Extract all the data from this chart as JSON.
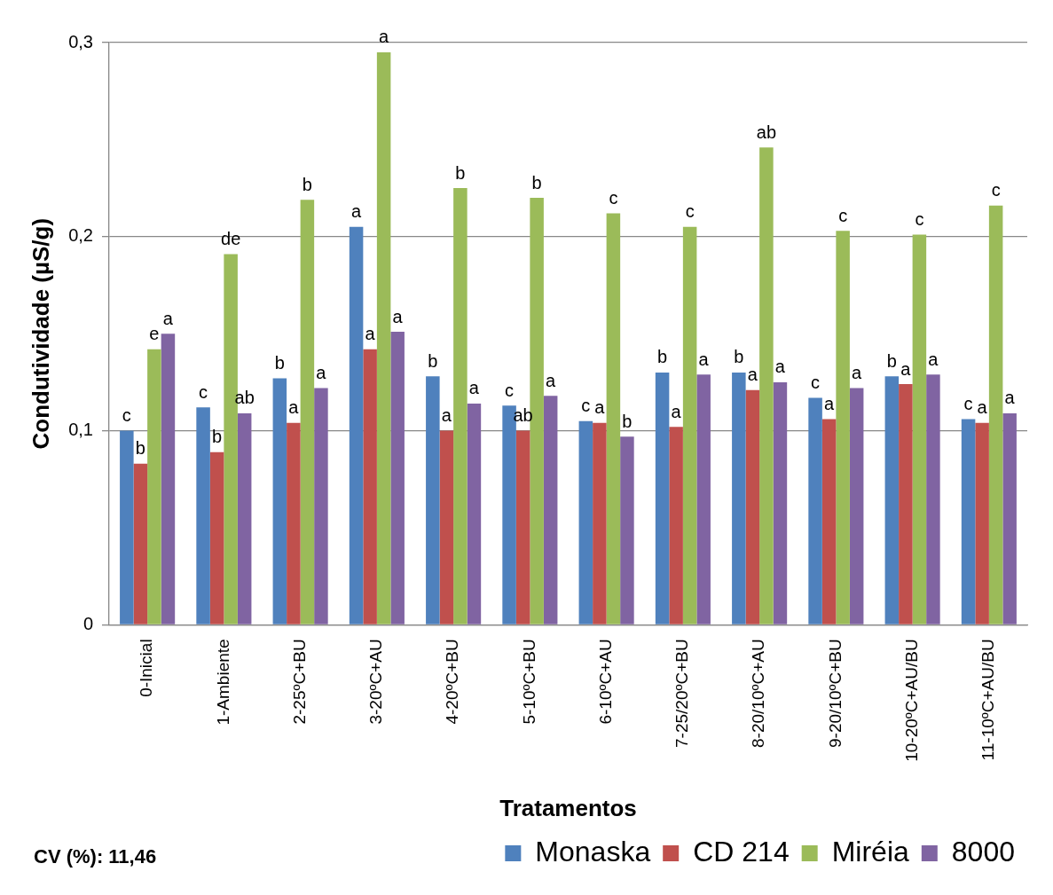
{
  "chart_data": {
    "type": "bar",
    "xlabel": "Tratamentos",
    "ylabel": "Condutividade (µS/g)",
    "categories": [
      "0-Inicial",
      "1-Ambiente",
      "2-25ºC+BU",
      "3-20ºC+AU",
      "4-20ºC+BU",
      "5-10ºC+BU",
      "6-10ºC+AU",
      "7-25/20ºC+BU",
      "8-20/10ºC+AU",
      "9-20/10ºC+BU",
      "10-20ºC+AU/BU",
      "11-10ºC+AU/BU"
    ],
    "series": [
      {
        "name": "Monaska",
        "color": "#4f81bd",
        "values": [
          0.1,
          0.112,
          0.127,
          0.205,
          0.128,
          0.113,
          0.105,
          0.13,
          0.13,
          0.117,
          0.128,
          0.106
        ],
        "value_labels": [
          "c",
          "c",
          "b",
          "a",
          "b",
          "c",
          "c",
          "b",
          "b",
          "c",
          "b",
          "c"
        ]
      },
      {
        "name": "CD 214",
        "color": "#c0504d",
        "values": [
          0.083,
          0.089,
          0.104,
          0.142,
          0.1,
          0.1,
          0.104,
          0.102,
          0.121,
          0.106,
          0.124,
          0.104
        ],
        "value_labels": [
          "b",
          "b",
          "a",
          "a",
          "a",
          "ab",
          "a",
          "a",
          "a",
          "a",
          "a",
          "a"
        ]
      },
      {
        "name": "Miréia",
        "color": "#9bbb59",
        "values": [
          0.142,
          0.191,
          0.219,
          0.295,
          0.225,
          0.22,
          0.212,
          0.205,
          0.246,
          0.203,
          0.201,
          0.216
        ],
        "value_labels": [
          "e",
          "de",
          "b",
          "a",
          "b",
          "b",
          "c",
          "c",
          "ab",
          "c",
          "c",
          "c"
        ]
      },
      {
        "name": "8000",
        "color": "#8064a2",
        "values": [
          0.15,
          0.109,
          0.122,
          0.151,
          0.114,
          0.118,
          0.097,
          0.129,
          0.125,
          0.122,
          0.129,
          0.109
        ],
        "value_labels": [
          "a",
          "ab",
          "a",
          "a",
          "a",
          "a",
          "b",
          "a",
          "a",
          "a",
          "a",
          "a"
        ]
      }
    ],
    "ylim": [
      0,
      0.3
    ],
    "yticks": [
      {
        "value": 0,
        "label": "0"
      },
      {
        "value": 0.1,
        "label": "0,1"
      },
      {
        "value": 0.2,
        "label": "0,2"
      },
      {
        "value": 0.3,
        "label": "0,3"
      }
    ],
    "grid": "y",
    "legend": "bottom",
    "annotations": [
      "CV (%): 11,46"
    ]
  }
}
